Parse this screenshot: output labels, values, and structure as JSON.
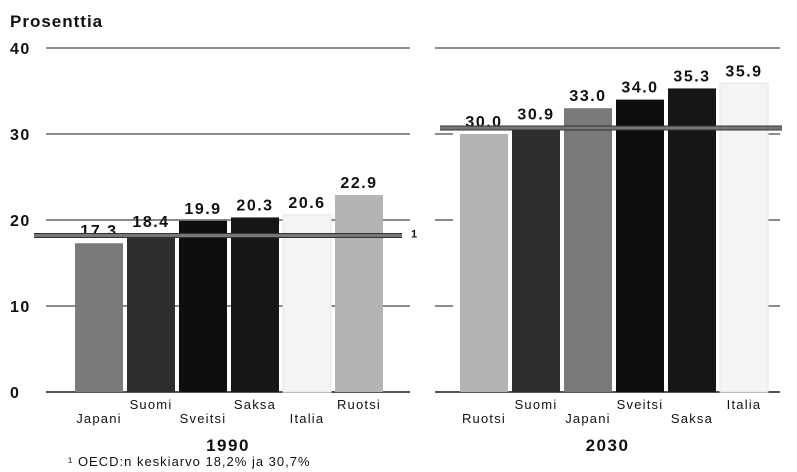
{
  "y_axis_title": "Prosenttia",
  "footnote": "¹ OECD:n keskiarvo 18,2% ja 30,7%",
  "avg_line_marker": "1",
  "colors": {
    "grid": "#1a1a1a",
    "avg_line": "#777777",
    "avg_line_edge": "#333333"
  },
  "chart_data": [
    {
      "type": "bar",
      "title": "1990",
      "ylim": [
        0,
        40
      ],
      "yticks": [
        "0",
        "10",
        "20",
        "30",
        "40"
      ],
      "categories": [
        "Japani",
        "Suomi",
        "Sveitsi",
        "Saksa",
        "Italia",
        "Ruotsi"
      ],
      "values": [
        17.3,
        18.4,
        19.9,
        20.3,
        20.6,
        22.9
      ],
      "value_labels": [
        "17.3",
        "18.4",
        "19.9",
        "20.3",
        "20.6",
        "22.9"
      ],
      "bar_colors": [
        "#7a7a7a",
        "#2e2e2e",
        "#0d0d0d",
        "#161616",
        "#f4f4f4",
        "#b4b4b4"
      ],
      "average": 18.2
    },
    {
      "type": "bar",
      "title": "2030",
      "ylim": [
        0,
        40
      ],
      "categories": [
        "Ruotsi",
        "Suomi",
        "Japani",
        "Sveitsi",
        "Saksa",
        "Italia"
      ],
      "values": [
        30.0,
        30.9,
        33.0,
        34.0,
        35.3,
        35.9
      ],
      "value_labels": [
        "30.0",
        "30.9",
        "33.0",
        "34.0",
        "35.3",
        "35.9"
      ],
      "bar_colors": [
        "#b4b4b4",
        "#2e2e2e",
        "#7a7a7a",
        "#0d0d0d",
        "#161616",
        "#f4f4f4"
      ],
      "average": 30.7
    }
  ]
}
